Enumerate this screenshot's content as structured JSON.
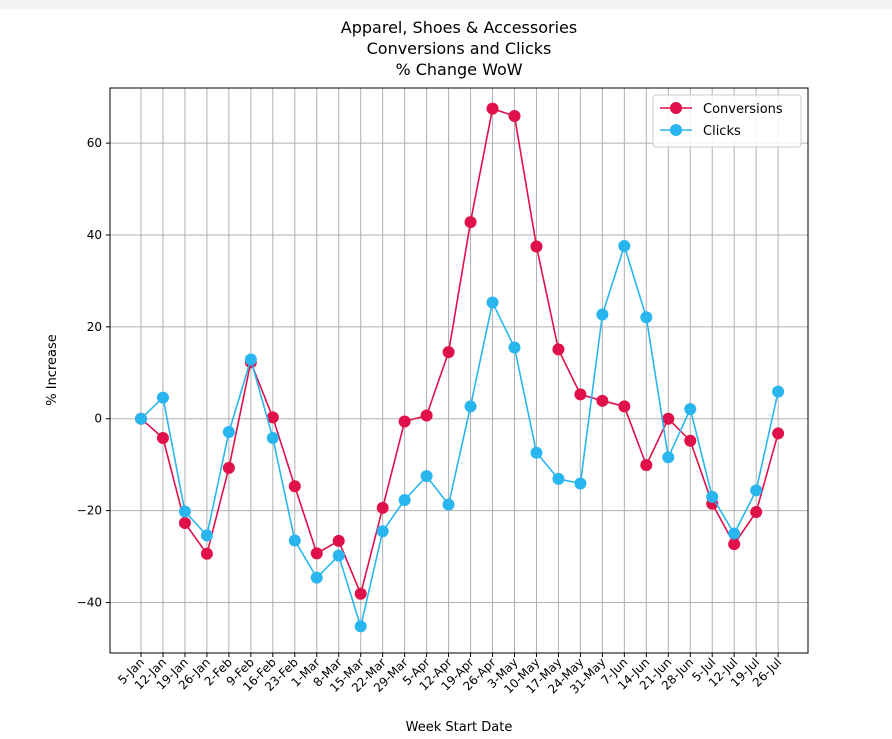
{
  "chart_data": {
    "type": "line",
    "title": [
      "Apparel, Shoes & Accessories",
      "Conversions and Clicks",
      "% Change WoW"
    ],
    "xlabel": "Week Start Date",
    "ylabel": "% Increase",
    "ylim": [
      -51,
      72
    ],
    "yticks": [
      60,
      40,
      20,
      0,
      -20,
      -40
    ],
    "ytick_labels": [
      "60",
      "40",
      "20",
      "0",
      "−20",
      "−40"
    ],
    "grid": true,
    "legend_position": "top-right",
    "categories": [
      "5-Jan",
      "12-Jan",
      "19-Jan",
      "26-Jan",
      "2-Feb",
      "9-Feb",
      "16-Feb",
      "23-Feb",
      "1-Mar",
      "8-Mar",
      "15-Mar",
      "22-Mar",
      "29-Mar",
      "5-Apr",
      "12-Apr",
      "19-Apr",
      "26-Apr",
      "3-May",
      "10-May",
      "17-May",
      "24-May",
      "31-May",
      "7-Jun",
      "14-Jun",
      "21-Jun",
      "28-Jun",
      "5-Jul",
      "12-Jul",
      "19-Jul",
      "26-Jul"
    ],
    "series": [
      {
        "name": "Conversions",
        "color": "#e0104a",
        "values": [
          0,
          -4.2,
          -22.7,
          -29.4,
          -10.7,
          12.3,
          0.3,
          -14.7,
          -29.3,
          -26.6,
          -38.1,
          -19.4,
          -0.6,
          0.7,
          14.5,
          42.8,
          67.5,
          65.9,
          37.5,
          15.1,
          5.3,
          3.9,
          2.7,
          -10.1,
          0,
          -4.8,
          -18.5,
          -27.3,
          -20.3,
          -3.2
        ]
      },
      {
        "name": "Clicks",
        "color": "#29b6ee",
        "values": [
          0,
          4.6,
          -20.2,
          -25.4,
          -2.9,
          12.9,
          -4.2,
          -26.5,
          -34.6,
          -29.8,
          -45.2,
          -24.5,
          -17.7,
          -12.5,
          -18.7,
          2.7,
          25.3,
          15.5,
          -7.4,
          -13.1,
          -14.1,
          22.7,
          37.6,
          22.1,
          -8.4,
          2.1,
          -17,
          -25,
          -15.6,
          5.9
        ]
      }
    ]
  }
}
